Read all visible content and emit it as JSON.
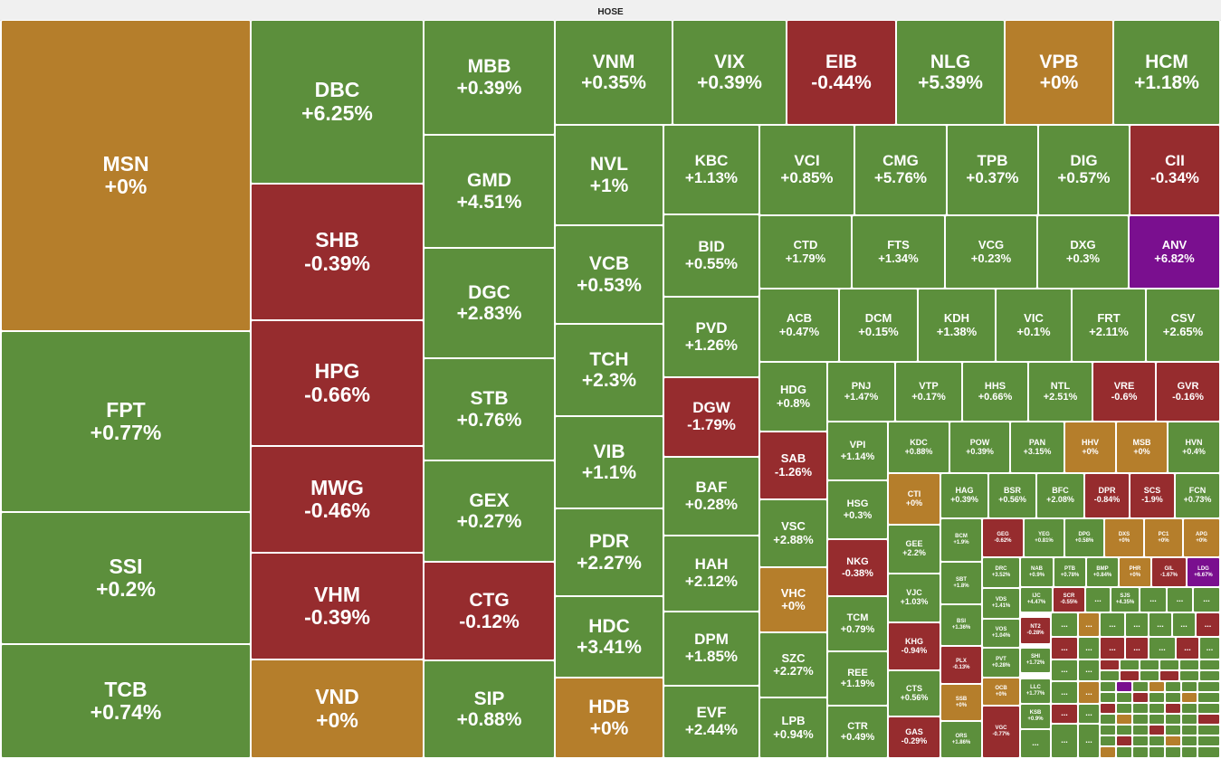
{
  "exchange": "HOSE",
  "colors": {
    "up": "#5c8f3c",
    "down": "#962c2e",
    "flat": "#b57e2b",
    "ceiling": "#7a0f8f"
  },
  "tiles": {
    "MSN": {
      "symbol": "MSN",
      "change": "+0%"
    },
    "FPT": {
      "symbol": "FPT",
      "change": "+0.77%"
    },
    "SSI": {
      "symbol": "SSI",
      "change": "+0.2%"
    },
    "TCB": {
      "symbol": "TCB",
      "change": "+0.74%"
    },
    "DBC": {
      "symbol": "DBC",
      "change": "+6.25%"
    },
    "SHB": {
      "symbol": "SHB",
      "change": "-0.39%"
    },
    "HPG": {
      "symbol": "HPG",
      "change": "-0.66%"
    },
    "MWG": {
      "symbol": "MWG",
      "change": "-0.46%"
    },
    "VHM": {
      "symbol": "VHM",
      "change": "-0.39%"
    },
    "VND": {
      "symbol": "VND",
      "change": "+0%"
    },
    "MBB": {
      "symbol": "MBB",
      "change": "+0.39%"
    },
    "GMD": {
      "symbol": "GMD",
      "change": "+4.51%"
    },
    "DGC": {
      "symbol": "DGC",
      "change": "+2.83%"
    },
    "STB": {
      "symbol": "STB",
      "change": "+0.76%"
    },
    "GEX": {
      "symbol": "GEX",
      "change": "+0.27%"
    },
    "CTG": {
      "symbol": "CTG",
      "change": "-0.12%"
    },
    "SIP": {
      "symbol": "SIP",
      "change": "+0.88%"
    },
    "VNM": {
      "symbol": "VNM",
      "change": "+0.35%"
    },
    "VIX": {
      "symbol": "VIX",
      "change": "+0.39%"
    },
    "EIB": {
      "symbol": "EIB",
      "change": "-0.44%"
    },
    "NLG": {
      "symbol": "NLG",
      "change": "+5.39%"
    },
    "VPB": {
      "symbol": "VPB",
      "change": "+0%"
    },
    "HCM": {
      "symbol": "HCM",
      "change": "+1.18%"
    },
    "NVL": {
      "symbol": "NVL",
      "change": "+1%"
    },
    "VCB": {
      "symbol": "VCB",
      "change": "+0.53%"
    },
    "TCH": {
      "symbol": "TCH",
      "change": "+2.3%"
    },
    "VIB": {
      "symbol": "VIB",
      "change": "+1.1%"
    },
    "PDR": {
      "symbol": "PDR",
      "change": "+2.27%"
    },
    "HDC": {
      "symbol": "HDC",
      "change": "+3.41%"
    },
    "HDB": {
      "symbol": "HDB",
      "change": "+0%"
    },
    "KBC": {
      "symbol": "KBC",
      "change": "+1.13%"
    },
    "BID": {
      "symbol": "BID",
      "change": "+0.55%"
    },
    "PVD": {
      "symbol": "PVD",
      "change": "+1.26%"
    },
    "DGW": {
      "symbol": "DGW",
      "change": "-1.79%"
    },
    "BAF": {
      "symbol": "BAF",
      "change": "+0.28%"
    },
    "HAH": {
      "symbol": "HAH",
      "change": "+2.12%"
    },
    "DPM": {
      "symbol": "DPM",
      "change": "+1.85%"
    },
    "EVF": {
      "symbol": "EVF",
      "change": "+2.44%"
    },
    "VCI": {
      "symbol": "VCI",
      "change": "+0.85%"
    },
    "CMG": {
      "symbol": "CMG",
      "change": "+5.76%"
    },
    "TPB": {
      "symbol": "TPB",
      "change": "+0.37%"
    },
    "DIG": {
      "symbol": "DIG",
      "change": "+0.57%"
    },
    "CII": {
      "symbol": "CII",
      "change": "-0.34%"
    },
    "CTD": {
      "symbol": "CTD",
      "change": "+1.79%"
    },
    "FTS": {
      "symbol": "FTS",
      "change": "+1.34%"
    },
    "VCG": {
      "symbol": "VCG",
      "change": "+0.23%"
    },
    "DXG": {
      "symbol": "DXG",
      "change": "+0.3%"
    },
    "ANV": {
      "symbol": "ANV",
      "change": "+6.82%"
    },
    "ACB": {
      "symbol": "ACB",
      "change": "+0.47%"
    },
    "DCM": {
      "symbol": "DCM",
      "change": "+0.15%"
    },
    "KDH": {
      "symbol": "KDH",
      "change": "+1.38%"
    },
    "VIC": {
      "symbol": "VIC",
      "change": "+0.1%"
    },
    "FRT": {
      "symbol": "FRT",
      "change": "+2.11%"
    },
    "CSV": {
      "symbol": "CSV",
      "change": "+2.65%"
    },
    "HDG": {
      "symbol": "HDG",
      "change": "+0.8%"
    },
    "SAB": {
      "symbol": "SAB",
      "change": "-1.26%"
    },
    "VSC": {
      "symbol": "VSC",
      "change": "+2.88%"
    },
    "VHC": {
      "symbol": "VHC",
      "change": "+0%"
    },
    "SZC": {
      "symbol": "SZC",
      "change": "+2.27%"
    },
    "LPB": {
      "symbol": "LPB",
      "change": "+0.94%"
    },
    "PNJ": {
      "symbol": "PNJ",
      "change": "+1.47%"
    },
    "VTP": {
      "symbol": "VTP",
      "change": "+0.17%"
    },
    "HHS": {
      "symbol": "HHS",
      "change": "+0.66%"
    },
    "NTL": {
      "symbol": "NTL",
      "change": "+2.51%"
    },
    "VRE": {
      "symbol": "VRE",
      "change": "-0.6%"
    },
    "GVR": {
      "symbol": "GVR",
      "change": "-0.16%"
    },
    "VPI": {
      "symbol": "VPI",
      "change": "+1.14%"
    },
    "HSG": {
      "symbol": "HSG",
      "change": "+0.3%"
    },
    "NKG": {
      "symbol": "NKG",
      "change": "-0.38%"
    },
    "TCM": {
      "symbol": "TCM",
      "change": "+0.79%"
    },
    "REE": {
      "symbol": "REE",
      "change": "+1.19%"
    },
    "CTR": {
      "symbol": "CTR",
      "change": "+0.49%"
    },
    "KDC": {
      "symbol": "KDC",
      "change": "+0.88%"
    },
    "POW": {
      "symbol": "POW",
      "change": "+0.39%"
    },
    "PAN": {
      "symbol": "PAN",
      "change": "+3.15%"
    },
    "HHV": {
      "symbol": "HHV",
      "change": "+0%"
    },
    "MSB": {
      "symbol": "MSB",
      "change": "+0%"
    },
    "HVN": {
      "symbol": "HVN",
      "change": "+0.4%"
    },
    "CTI": {
      "symbol": "CTI",
      "change": "+0%"
    },
    "GEE": {
      "symbol": "GEE",
      "change": "+2.2%"
    },
    "VJC": {
      "symbol": "VJC",
      "change": "+1.03%"
    },
    "KHG": {
      "symbol": "KHG",
      "change": "-0.94%"
    },
    "CTS": {
      "symbol": "CTS",
      "change": "+0.56%"
    },
    "GAS": {
      "symbol": "GAS",
      "change": "-0.29%"
    },
    "HAG": {
      "symbol": "HAG",
      "change": "+0.39%"
    },
    "BSR": {
      "symbol": "BSR",
      "change": "+0.56%"
    },
    "BFC": {
      "symbol": "BFC",
      "change": "+2.08%"
    },
    "DPR": {
      "symbol": "DPR",
      "change": "-0.84%"
    },
    "SCS": {
      "symbol": "SCS",
      "change": "-1.9%"
    },
    "FCN": {
      "symbol": "FCN",
      "change": "+0.73%"
    },
    "BCM": {
      "symbol": "BCM",
      "change": "+1.9%"
    },
    "SBT": {
      "symbol": "SBT",
      "change": "+1.8%"
    },
    "BSI": {
      "symbol": "BSI",
      "change": "+1.36%"
    },
    "PLX": {
      "symbol": "PLX",
      "change": "-0.13%"
    },
    "SSB": {
      "symbol": "SSB",
      "change": "+0%"
    },
    "ORS": {
      "symbol": "ORS",
      "change": "+1.86%"
    },
    "GEG": {
      "symbol": "GEG",
      "change": "-0.62%"
    },
    "YEG": {
      "symbol": "YEG",
      "change": "+0.81%"
    },
    "DPG": {
      "symbol": "DPG",
      "change": "+0.58%"
    },
    "DXS": {
      "symbol": "DXS",
      "change": "+0%"
    },
    "PC1": {
      "symbol": "PC1",
      "change": "+0%"
    },
    "APG": {
      "symbol": "APG",
      "change": "+0%"
    },
    "DRC": {
      "symbol": "DRC",
      "change": "+3.52%"
    },
    "VDS": {
      "symbol": "VDS",
      "change": "+1.41%"
    },
    "VOS": {
      "symbol": "VOS",
      "change": "+1.04%"
    },
    "PVT": {
      "symbol": "PVT",
      "change": "+0.28%"
    },
    "OCB": {
      "symbol": "OCB",
      "change": "+0%"
    },
    "VGC": {
      "symbol": "VGC",
      "change": "-0.77%"
    },
    "NAB": {
      "symbol": "NAB",
      "change": "+0.9%"
    },
    "PTB": {
      "symbol": "PTB",
      "change": "+0.78%"
    },
    "BMP": {
      "symbol": "BMP",
      "change": "+0.84%"
    },
    "PHR": {
      "symbol": "PHR",
      "change": "+0%"
    },
    "GIL": {
      "symbol": "GIL",
      "change": "-1.67%"
    },
    "LDG": {
      "symbol": "LDG",
      "change": "+6.67%"
    },
    "IJC": {
      "symbol": "IJC",
      "change": "+4.47%"
    },
    "SCR": {
      "symbol": "SCR",
      "change": "-0.55%"
    },
    "SJS": {
      "symbol": "SJS",
      "change": "+4.35%"
    },
    "NT2": {
      "symbol": "NT2",
      "change": "-0.28%"
    },
    "SHI": {
      "symbol": "SHI",
      "change": "+1.72%"
    },
    "LLC": {
      "symbol": "LLC",
      "change": "+1.77%"
    },
    "KSB": {
      "symbol": "KSB",
      "change": "+0.9%"
    }
  },
  "more_label": "..."
}
